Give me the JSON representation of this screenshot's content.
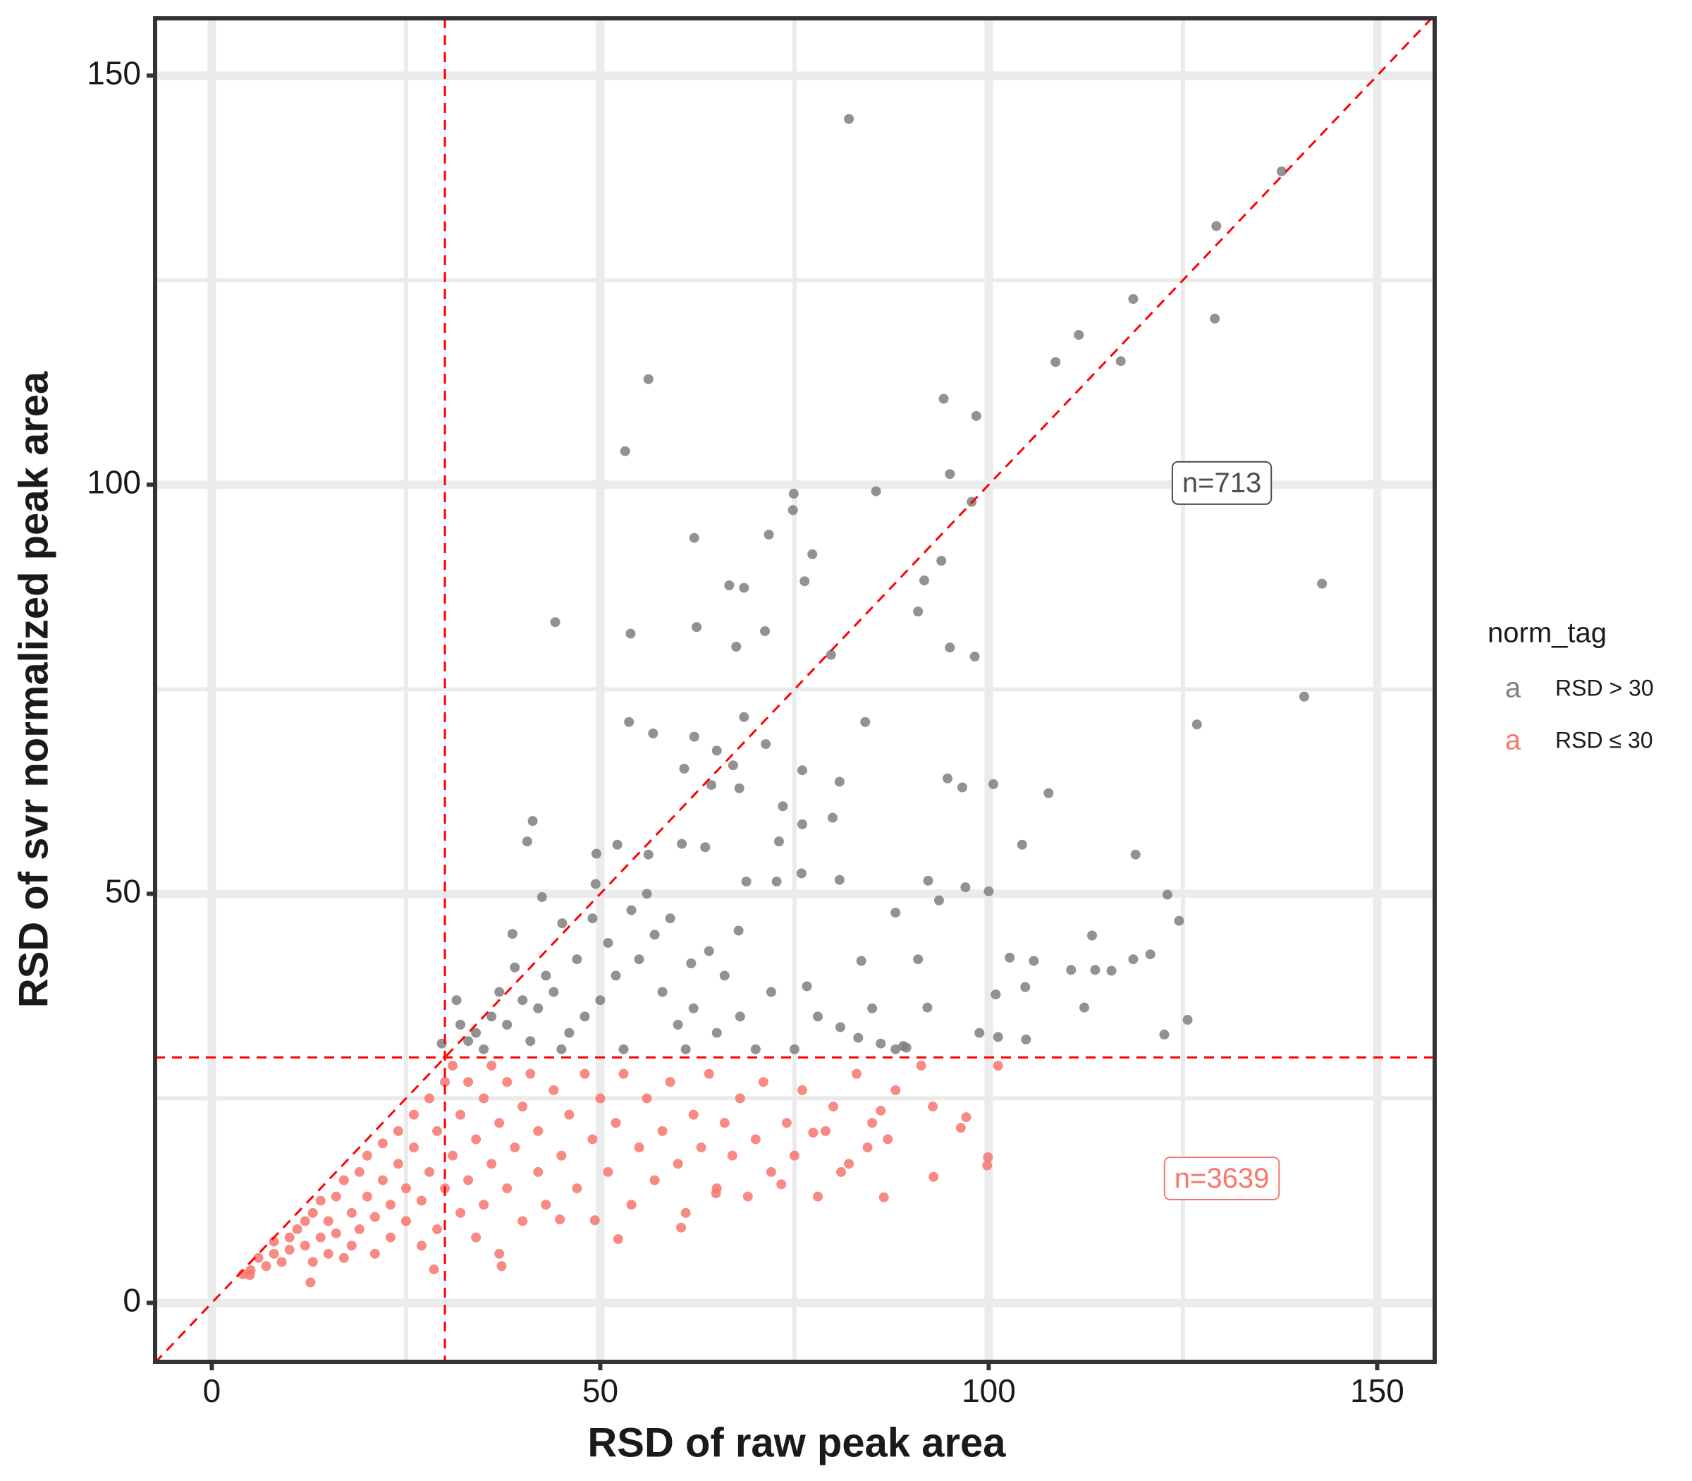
{
  "chart_data": {
    "type": "scatter",
    "x_label": "RSD of raw peak area",
    "y_label": "RSD of svr normalized peak area",
    "xlim": [
      -7.3,
      157.4
    ],
    "ylim": [
      -7.2,
      157
    ],
    "xticks": [
      0,
      50,
      100,
      150
    ],
    "yticks": [
      0,
      50,
      100,
      150
    ],
    "minor_grid": [
      25,
      75,
      125
    ],
    "grid": true,
    "legend_title": "norm_tag",
    "legend_key": "a",
    "legend_position": "right",
    "vlines": [
      30
    ],
    "hlines": [
      30
    ],
    "abline": {
      "slope": 1,
      "intercept": 0
    },
    "reference_color": "#ff0000",
    "annotations": [
      {
        "text": "n=713",
        "x": 130,
        "y": 100,
        "color": "#4d4d4d"
      },
      {
        "text": "n=3639",
        "x": 130,
        "y": 15,
        "color": "#F8766D"
      }
    ],
    "series": [
      {
        "name": "RSD > 30",
        "color": "#7f7f7f",
        "x": [
          82,
          137.7,
          129.3,
          118.6,
          129.1,
          111.6,
          108.6,
          117,
          56.2,
          94.2,
          98.4,
          53.2,
          95,
          74.9,
          85.5,
          97.8,
          74.8,
          62.1,
          71.7,
          77.3,
          93.9,
          66.6,
          68.5,
          76.3,
          91.7,
          142.9,
          44.2,
          90.9,
          53.9,
          62.4,
          71.2,
          67.5,
          79.7,
          95,
          98.2,
          140.6,
          53.7,
          68.5,
          84.1,
          126.8,
          56.8,
          62.1,
          65,
          71.3,
          60.8,
          67.1,
          76,
          64.3,
          80.8,
          94.7,
          100.6,
          107.7,
          96.6,
          67.9,
          41.3,
          40.6,
          73.5,
          79.9,
          76,
          104.3,
          118.9,
          49.5,
          52.2,
          56.2,
          60.5,
          63.5,
          73,
          75.9,
          68.8,
          72.7,
          80.8,
          92.2,
          97,
          100,
          93.6,
          123,
          124.5,
          88,
          67.8,
          61.7,
          83.6,
          90.9,
          102.7,
          105.8,
          113.3,
          120.8,
          122.6,
          125.6,
          112.3,
          110.6,
          115.8,
          113.7,
          118.6,
          100.9,
          104.7,
          76.6,
          92.1,
          98.8,
          101.2,
          104.8,
          80.9,
          83.2,
          86.1,
          89,
          89.4,
          38.7,
          42.5,
          45.1,
          49.4,
          31.5,
          29.6,
          34,
          36,
          38,
          40,
          42,
          44,
          46,
          48,
          50,
          52,
          55,
          58,
          60,
          62,
          65,
          68,
          70,
          72,
          57,
          54,
          51,
          47,
          43,
          39,
          45,
          35,
          33,
          41,
          53,
          61,
          75,
          78,
          64,
          66,
          59,
          56,
          49,
          37,
          32,
          85,
          88
        ],
        "y": [
          144.7,
          138.3,
          131.6,
          122.7,
          120.3,
          118.3,
          115,
          115.1,
          112.9,
          110.5,
          108.4,
          104.1,
          101.3,
          98.9,
          99.2,
          97.9,
          96.9,
          93.5,
          93.9,
          91.5,
          90.7,
          87.7,
          87.4,
          88.2,
          88.3,
          87.9,
          83.2,
          84.5,
          81.8,
          82.6,
          82.1,
          80.2,
          79.2,
          80.1,
          79,
          74.1,
          71,
          71.6,
          71,
          70.7,
          69.6,
          69.2,
          67.5,
          68.3,
          65.3,
          65.7,
          65.1,
          63.3,
          63.7,
          64.1,
          63.4,
          62.3,
          63,
          62.9,
          58.9,
          56.4,
          60.7,
          59.3,
          58.5,
          56,
          54.8,
          54.9,
          56,
          54.8,
          56.1,
          55.7,
          56.4,
          52.5,
          51.5,
          51.5,
          51.7,
          51.6,
          50.8,
          50.3,
          49.2,
          49.9,
          46.7,
          47.7,
          45.5,
          41.5,
          41.8,
          42,
          42.2,
          41.8,
          44.9,
          42.6,
          32.8,
          34.6,
          36.1,
          40.7,
          40.6,
          40.7,
          42,
          37.7,
          38.6,
          38.7,
          36.1,
          33,
          32.5,
          32.2,
          33.7,
          32.4,
          31.7,
          31.4,
          31.2,
          45.1,
          49.6,
          46.4,
          51.2,
          37,
          31.7,
          33,
          35,
          34,
          37,
          36,
          38,
          33,
          35,
          37,
          40,
          42,
          38,
          34,
          36,
          33,
          35,
          31,
          38,
          45,
          48,
          44,
          42,
          40,
          41,
          31,
          31,
          32,
          32,
          31,
          31,
          31,
          35,
          43,
          40,
          47,
          50,
          47,
          38,
          34,
          36,
          31
        ]
      },
      {
        "name": "RSD ≤ 30",
        "color": "#F8766D",
        "x": [
          4,
          5,
          6,
          7,
          8,
          8,
          9,
          10,
          10,
          11,
          12,
          12,
          13,
          13,
          14,
          14,
          15,
          15,
          16,
          16,
          17,
          17,
          18,
          18,
          19,
          19,
          20,
          20,
          21,
          21,
          22,
          22,
          23,
          23,
          24,
          24,
          25,
          25,
          26,
          26,
          27,
          27,
          28,
          28,
          29,
          29,
          30,
          30,
          31,
          31,
          32,
          32,
          33,
          33,
          34,
          34,
          35,
          35,
          36,
          36,
          37,
          37,
          38,
          38,
          39,
          40,
          40,
          41,
          42,
          42,
          43,
          44,
          45,
          46,
          47,
          48,
          49,
          50,
          51,
          52,
          53,
          54,
          55,
          56,
          57,
          58,
          59,
          60,
          61,
          62,
          63,
          64,
          65,
          66,
          67,
          68,
          69,
          70,
          71,
          72,
          74,
          75,
          76,
          78,
          79,
          80,
          82,
          83,
          85,
          87,
          88,
          99.9,
          99.8,
          92.9,
          86.5,
          97.1,
          96.4,
          92.8,
          91.3,
          101.2,
          86.1,
          84.4,
          81,
          77.4,
          73.3,
          64.9,
          60.4,
          52.3,
          49.3,
          44.8,
          37.3,
          28.6,
          4.9,
          12.7
        ],
        "y": [
          3.5,
          4,
          5.5,
          4.5,
          6,
          7.5,
          5,
          8,
          6.5,
          9,
          7,
          10,
          5,
          11,
          8,
          12.5,
          6,
          10,
          13,
          8.5,
          5.5,
          15,
          11,
          7,
          16,
          9,
          13,
          18,
          6,
          10.5,
          15,
          19.5,
          8,
          12,
          17,
          21,
          10,
          14,
          19,
          23,
          7,
          12.5,
          16,
          25,
          21,
          9,
          27,
          14,
          18,
          29,
          11,
          23,
          15,
          27,
          20,
          8,
          25,
          12,
          29,
          17,
          22,
          6,
          27,
          14,
          19,
          24,
          10,
          28,
          16,
          21,
          12,
          26,
          18,
          23,
          14,
          28,
          20,
          25,
          16,
          22,
          28,
          12,
          19,
          25,
          15,
          21,
          27,
          17,
          11,
          23,
          19,
          28,
          14,
          22,
          18,
          25,
          13,
          20,
          27,
          16,
          22,
          18,
          26,
          13,
          21,
          24,
          17,
          28,
          22,
          20,
          26,
          17.8,
          16.8,
          15.4,
          12.9,
          22.7,
          21.4,
          24,
          29,
          29,
          23.5,
          19,
          16,
          20.8,
          14.5,
          13.4,
          9.2,
          7.8,
          10.1,
          10.2,
          4.5,
          4.1,
          3.4,
          2.5
        ]
      }
    ]
  }
}
